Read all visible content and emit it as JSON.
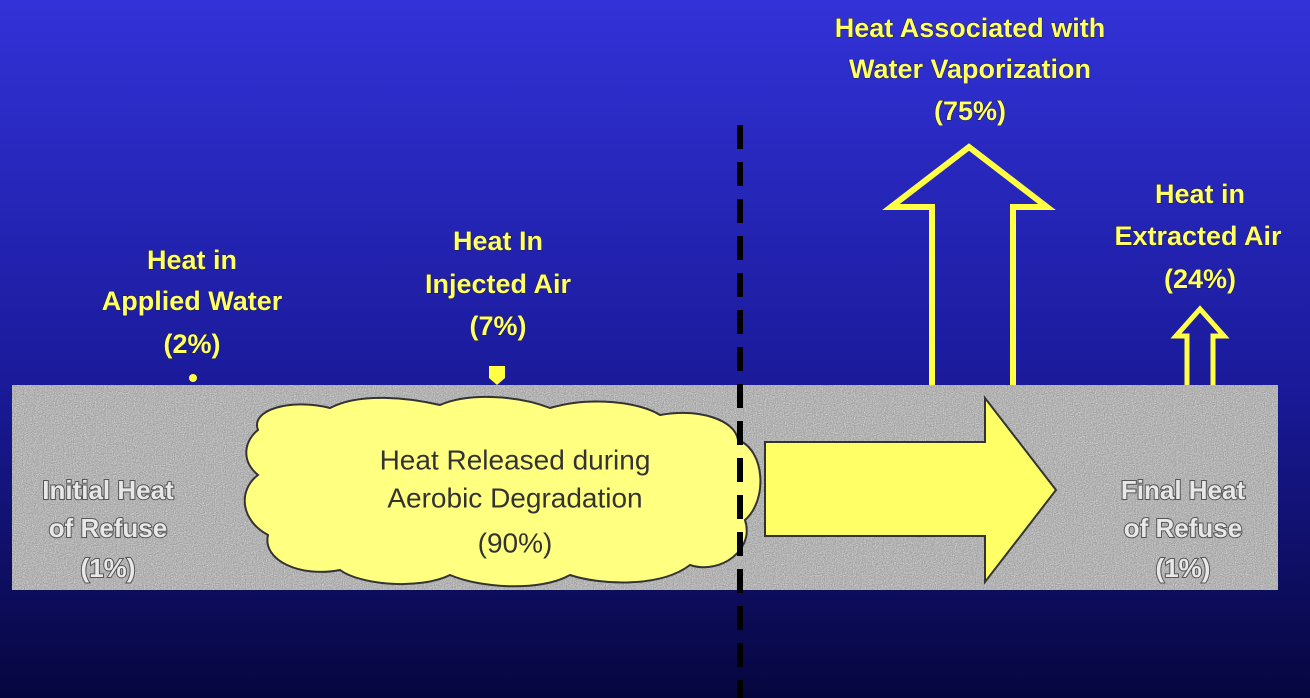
{
  "nodes": [
    {
      "lines": [
        "Heat in",
        "Applied Water",
        "(2%)"
      ]
    },
    {
      "lines": [
        "Heat In",
        "Injected Air",
        "(7%)"
      ]
    },
    {
      "lines": [
        "Heat Associated with",
        "Water Vaporization",
        "(75%)"
      ]
    },
    {
      "lines": [
        "Heat in",
        "Extracted Air",
        "(24%)"
      ]
    },
    {
      "lines": [
        "Initial Heat",
        "of Refuse",
        "(1%)"
      ]
    },
    {
      "lines": [
        "Heat Released during",
        "Aerobic Degradation",
        "(90%)"
      ]
    },
    {
      "lines": [
        "Final Heat",
        "of Refuse",
        "(1%)"
      ]
    }
  ]
}
